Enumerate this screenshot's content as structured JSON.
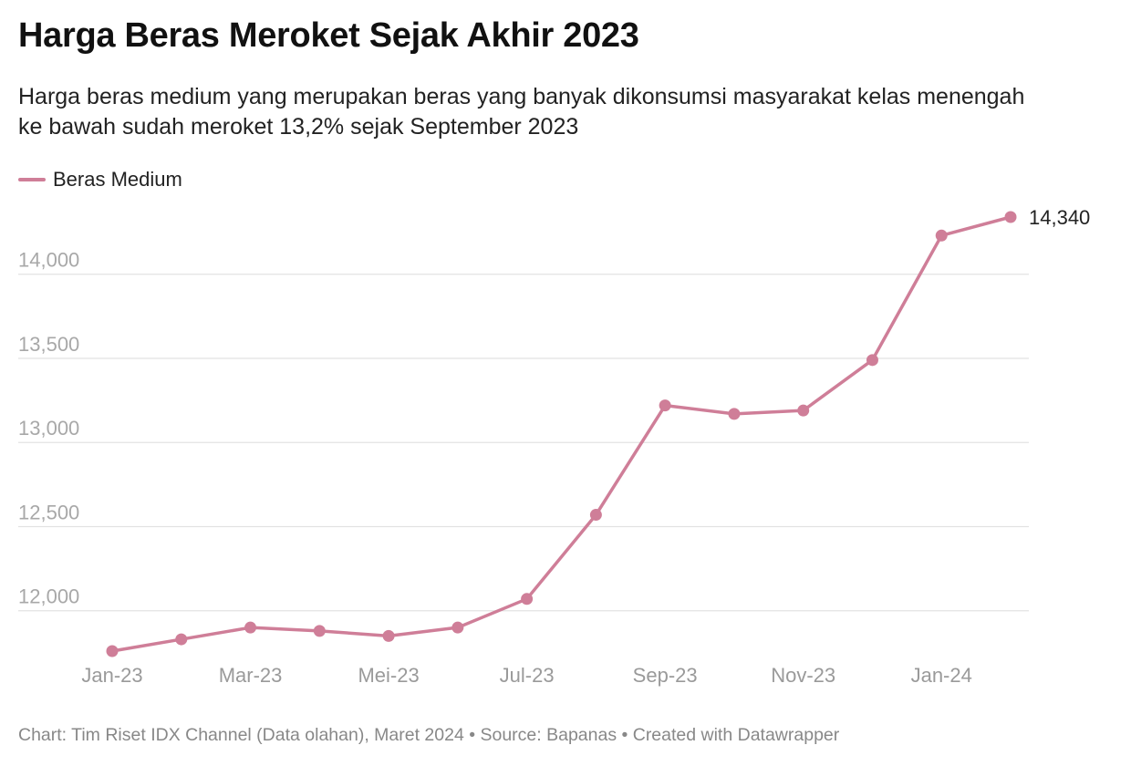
{
  "header": {
    "title": "Harga Beras Meroket Sejak Akhir 2023",
    "subtitle": "Harga beras medium yang merupakan beras yang banyak dikonsumsi masyarakat kelas menengah ke bawah sudah meroket 13,2% sejak September 2023"
  },
  "footer": {
    "text": "Chart: Tim Riset IDX Channel (Data olahan), Maret 2024 • Source: Bapanas • Created with Datawrapper"
  },
  "colors": {
    "series": "#cf7e98"
  },
  "chart_data": {
    "type": "line",
    "x": [
      "Jan-23",
      "Feb-23",
      "Mar-23",
      "Apr-23",
      "Mei-23",
      "Jun-23",
      "Jul-23",
      "Agu-23",
      "Sep-23",
      "Okt-23",
      "Nov-23",
      "Des-23",
      "Jan-24",
      "Feb-24"
    ],
    "x_tick_labels": [
      "Jan-23",
      "Mar-23",
      "Mei-23",
      "Jul-23",
      "Sep-23",
      "Nov-23",
      "Jan-24"
    ],
    "x_tick_indices": [
      0,
      2,
      4,
      6,
      8,
      10,
      12
    ],
    "y_ticks": [
      12000,
      12500,
      13000,
      13500,
      14000
    ],
    "y_tick_labels": [
      "12,000",
      "12,500",
      "13,000",
      "13,500",
      "14,000"
    ],
    "ylim": [
      11760,
      14340
    ],
    "series": [
      {
        "name": "Beras Medium",
        "values": [
          11760,
          11830,
          11900,
          11880,
          11850,
          11900,
          12070,
          12570,
          13220,
          13170,
          13190,
          13490,
          14230,
          14340
        ]
      }
    ],
    "end_label": "14,340",
    "legend": "top-left",
    "grid": true
  }
}
